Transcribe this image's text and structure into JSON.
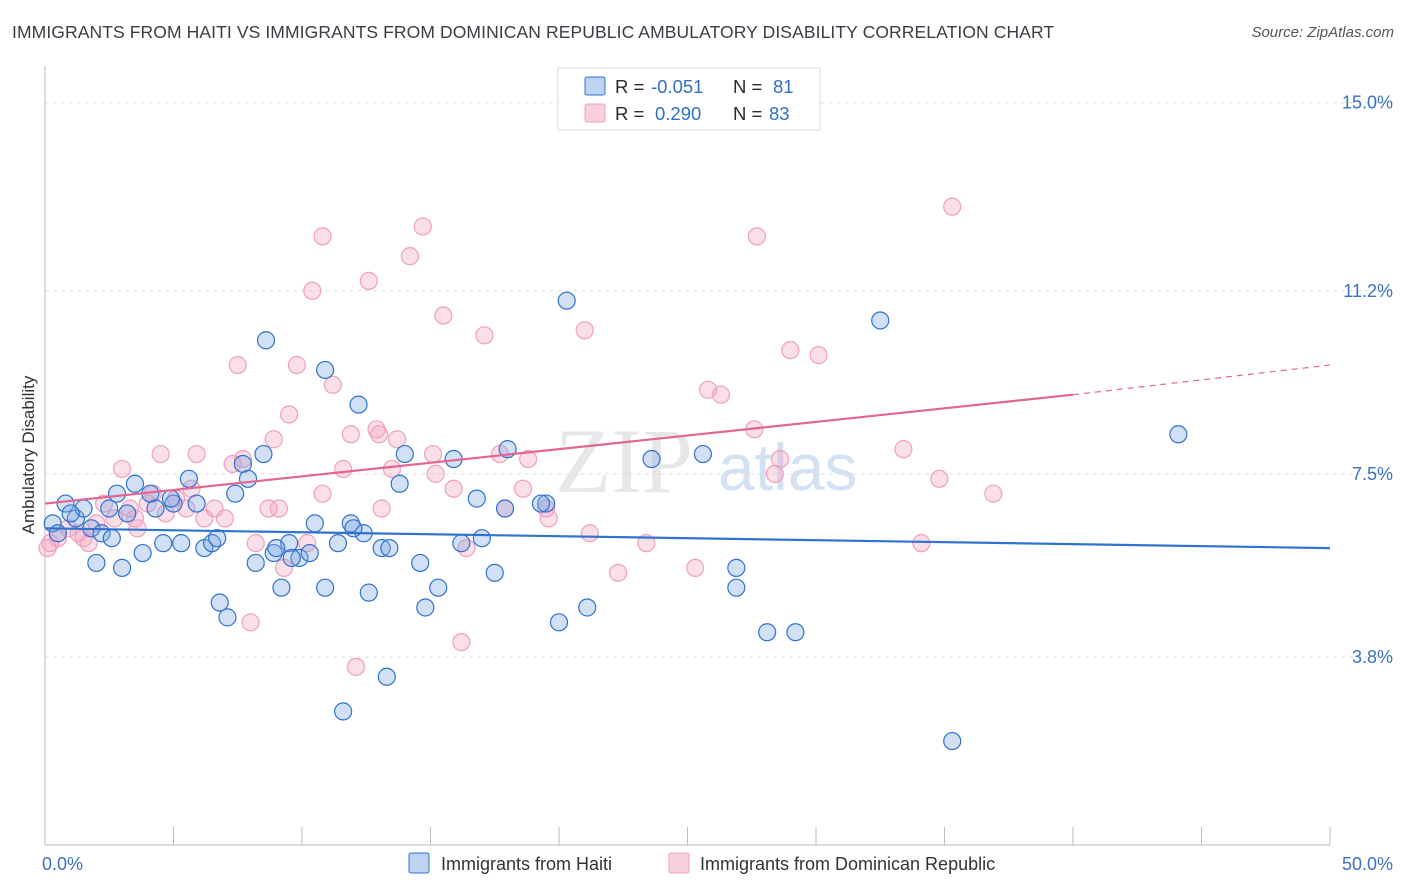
{
  "title": "IMMIGRANTS FROM HAITI VS IMMIGRANTS FROM DOMINICAN REPUBLIC AMBULATORY DISABILITY CORRELATION CHART",
  "source": "Source: ZipAtlas.com",
  "watermark": {
    "zip": "ZIP",
    "atlas": "atlas"
  },
  "colors": {
    "haiti": "#7aa7e3",
    "haiti_line": "#2f72d0",
    "dr": "#f0a0bc",
    "dr_line": "#e26690",
    "label": "#3a72c2"
  },
  "legend": {
    "rows": [
      {
        "r_label": "R =",
        "r_value": "-0.051",
        "n_label": "N =",
        "n_value": "81"
      },
      {
        "r_label": "R =",
        "r_value": "0.290",
        "n_label": "N =",
        "n_value": "83"
      }
    ]
  },
  "chart_data": {
    "type": "scatter",
    "title": "IMMIGRANTS FROM HAITI VS IMMIGRANTS FROM DOMINICAN REPUBLIC AMBULATORY DISABILITY CORRELATION CHART",
    "xlabel": "",
    "ylabel": "Ambulatory Disability",
    "xlim": [
      0,
      50
    ],
    "ylim": [
      0,
      15.5
    ],
    "x_tick_labels": [
      "0.0%",
      "50.0%"
    ],
    "y_ticks": [
      3.8,
      7.5,
      11.2,
      15.0
    ],
    "y_tick_labels": [
      "3.8%",
      "7.5%",
      "11.2%",
      "15.0%"
    ],
    "grid": "horizontal dashed",
    "legend_position": "top-center",
    "series": [
      {
        "name": "Immigrants from Haiti",
        "r": -0.051,
        "n": 81,
        "trend": {
          "x": [
            0,
            50
          ],
          "y": [
            6.4,
            6.0
          ]
        },
        "points": [
          [
            0.3,
            6.5
          ],
          [
            0.5,
            6.3
          ],
          [
            0.8,
            6.9
          ],
          [
            1.2,
            6.6
          ],
          [
            1.5,
            6.8
          ],
          [
            1.8,
            6.4
          ],
          [
            2.0,
            5.7
          ],
          [
            2.2,
            6.3
          ],
          [
            2.5,
            6.8
          ],
          [
            2.8,
            7.1
          ],
          [
            3.0,
            5.6
          ],
          [
            3.2,
            6.7
          ],
          [
            3.5,
            7.3
          ],
          [
            3.8,
            5.9
          ],
          [
            4.1,
            7.1
          ],
          [
            4.3,
            6.8
          ],
          [
            4.6,
            6.1
          ],
          [
            5.0,
            6.9
          ],
          [
            5.3,
            6.1
          ],
          [
            5.6,
            7.4
          ],
          [
            5.9,
            6.9
          ],
          [
            6.2,
            6.0
          ],
          [
            6.5,
            6.1
          ],
          [
            6.8,
            4.9
          ],
          [
            7.1,
            4.6
          ],
          [
            7.4,
            7.1
          ],
          [
            7.7,
            7.7
          ],
          [
            7.9,
            7.4
          ],
          [
            8.2,
            5.7
          ],
          [
            8.5,
            7.9
          ],
          [
            8.6,
            10.2
          ],
          [
            8.9,
            5.9
          ],
          [
            9.2,
            5.2
          ],
          [
            9.5,
            6.1
          ],
          [
            9.9,
            5.8
          ],
          [
            10.3,
            5.9
          ],
          [
            10.5,
            6.5
          ],
          [
            10.9,
            5.2
          ],
          [
            10.9,
            9.6
          ],
          [
            11.4,
            6.1
          ],
          [
            11.6,
            2.7
          ],
          [
            11.9,
            6.5
          ],
          [
            12.2,
            8.9
          ],
          [
            12.4,
            6.3
          ],
          [
            12.6,
            5.1
          ],
          [
            13.1,
            6.0
          ],
          [
            13.4,
            6.0
          ],
          [
            13.3,
            3.4
          ],
          [
            14.0,
            7.9
          ],
          [
            13.8,
            7.3
          ],
          [
            14.6,
            5.7
          ],
          [
            15.3,
            5.2
          ],
          [
            14.8,
            4.8
          ],
          [
            15.9,
            7.8
          ],
          [
            16.2,
            6.1
          ],
          [
            16.8,
            7.0
          ],
          [
            17.5,
            5.5
          ],
          [
            18.0,
            8.0
          ],
          [
            17.9,
            6.8
          ],
          [
            19.5,
            6.9
          ],
          [
            20.3,
            11.0
          ],
          [
            20.0,
            4.5
          ],
          [
            21.1,
            4.8
          ],
          [
            23.6,
            7.8
          ],
          [
            25.6,
            7.9
          ],
          [
            26.9,
            5.6
          ],
          [
            26.9,
            5.2
          ],
          [
            28.1,
            4.3
          ],
          [
            29.2,
            4.3
          ],
          [
            32.5,
            10.6
          ],
          [
            35.3,
            2.1
          ],
          [
            44.1,
            8.3
          ],
          [
            1.0,
            6.7
          ],
          [
            2.6,
            6.2
          ],
          [
            4.9,
            7.0
          ],
          [
            6.7,
            6.2
          ],
          [
            9.0,
            6.0
          ],
          [
            12.0,
            6.4
          ],
          [
            17.0,
            6.2
          ],
          [
            19.3,
            6.9
          ],
          [
            9.6,
            5.8
          ]
        ]
      },
      {
        "name": "Immigrants from Dominican Republic",
        "r": 0.29,
        "n": 83,
        "trend": {
          "x": [
            0,
            40
          ],
          "y": [
            6.9,
            9.1
          ]
        },
        "trend_dashed": {
          "x": [
            40,
            50
          ],
          "y": [
            9.1,
            9.7
          ]
        },
        "points": [
          [
            0.2,
            6.1
          ],
          [
            0.5,
            6.2
          ],
          [
            0.9,
            6.4
          ],
          [
            1.3,
            6.3
          ],
          [
            1.7,
            6.1
          ],
          [
            2.0,
            6.5
          ],
          [
            2.3,
            6.9
          ],
          [
            2.7,
            6.6
          ],
          [
            3.0,
            7.6
          ],
          [
            3.3,
            6.8
          ],
          [
            3.6,
            6.4
          ],
          [
            4.0,
            6.9
          ],
          [
            4.2,
            7.1
          ],
          [
            4.5,
            7.9
          ],
          [
            4.7,
            6.7
          ],
          [
            5.1,
            7.0
          ],
          [
            5.5,
            6.8
          ],
          [
            5.9,
            7.9
          ],
          [
            6.2,
            6.6
          ],
          [
            6.6,
            6.8
          ],
          [
            7.0,
            6.6
          ],
          [
            7.3,
            7.7
          ],
          [
            7.5,
            9.7
          ],
          [
            8.0,
            4.5
          ],
          [
            8.2,
            6.1
          ],
          [
            8.7,
            6.8
          ],
          [
            8.9,
            8.2
          ],
          [
            9.3,
            5.6
          ],
          [
            9.5,
            8.7
          ],
          [
            9.8,
            9.7
          ],
          [
            10.2,
            6.1
          ],
          [
            10.4,
            11.2
          ],
          [
            10.8,
            7.1
          ],
          [
            10.8,
            12.3
          ],
          [
            11.2,
            9.3
          ],
          [
            11.9,
            8.3
          ],
          [
            12.1,
            3.6
          ],
          [
            11.6,
            7.6
          ],
          [
            12.6,
            11.4
          ],
          [
            12.9,
            8.4
          ],
          [
            13.1,
            6.8
          ],
          [
            13.5,
            7.6
          ],
          [
            13.7,
            8.2
          ],
          [
            14.2,
            11.9
          ],
          [
            14.7,
            12.5
          ],
          [
            15.1,
            7.9
          ],
          [
            15.2,
            7.5
          ],
          [
            15.5,
            10.7
          ],
          [
            16.2,
            4.1
          ],
          [
            16.4,
            6.0
          ],
          [
            17.1,
            10.3
          ],
          [
            17.7,
            7.9
          ],
          [
            17.9,
            6.8
          ],
          [
            18.6,
            7.2
          ],
          [
            18.8,
            7.8
          ],
          [
            19.6,
            6.6
          ],
          [
            19.5,
            6.8
          ],
          [
            21.0,
            10.4
          ],
          [
            21.2,
            6.3
          ],
          [
            22.3,
            5.5
          ],
          [
            23.4,
            6.1
          ],
          [
            25.3,
            5.6
          ],
          [
            25.8,
            9.2
          ],
          [
            26.3,
            9.1
          ],
          [
            27.6,
            8.4
          ],
          [
            27.7,
            12.3
          ],
          [
            28.4,
            7.5
          ],
          [
            28.6,
            7.8
          ],
          [
            29.0,
            10.0
          ],
          [
            30.1,
            9.9
          ],
          [
            33.4,
            8.0
          ],
          [
            34.1,
            6.1
          ],
          [
            34.8,
            7.4
          ],
          [
            35.3,
            12.9
          ],
          [
            36.9,
            7.1
          ],
          [
            0.1,
            6.0
          ],
          [
            1.5,
            6.2
          ],
          [
            3.5,
            6.6
          ],
          [
            5.7,
            7.2
          ],
          [
            7.7,
            7.8
          ],
          [
            13.0,
            8.3
          ],
          [
            9.1,
            6.8
          ],
          [
            15.9,
            7.2
          ]
        ]
      }
    ]
  },
  "bottom_legend": {
    "haiti": "Immigrants from Haiti",
    "dr": "Immigrants from Dominican Republic"
  }
}
